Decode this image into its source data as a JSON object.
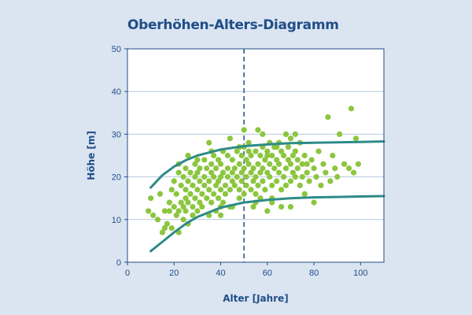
{
  "chart_data": {
    "type": "scatter",
    "title": "Oberhöhen-Alters-Diagramm",
    "xlabel": "Alter [Jahre]",
    "ylabel": "Höhe [m]",
    "xlim": [
      0,
      110
    ],
    "ylim": [
      0,
      50
    ],
    "xticks": [
      0,
      20,
      40,
      60,
      80,
      100
    ],
    "yticks": [
      0,
      10,
      20,
      30,
      40,
      50
    ],
    "grid": "horizontal",
    "reference_line_x": 50,
    "colors": {
      "points": "#8cc63f",
      "curves": "#2e8b88",
      "axis": "#1f4e87",
      "grid": "#b8c8de",
      "plot_bg": "#ffffff"
    },
    "curves": [
      {
        "x": [
          10,
          15,
          20,
          25,
          30,
          40,
          50,
          60,
          70,
          80,
          90,
          100,
          110
        ],
        "y": [
          17.5,
          20.4,
          22.4,
          23.9,
          25.0,
          26.4,
          27.2,
          27.6,
          27.9,
          28.0,
          28.1,
          28.2,
          28.3
        ]
      },
      {
        "x": [
          10,
          15,
          20,
          25,
          30,
          40,
          50,
          60,
          70,
          80,
          90,
          100,
          110
        ],
        "y": [
          2.6,
          4.8,
          7.0,
          9.0,
          10.6,
          12.8,
          14.0,
          14.6,
          15.0,
          15.2,
          15.3,
          15.4,
          15.5
        ]
      }
    ],
    "points": [
      [
        9,
        12
      ],
      [
        10,
        15
      ],
      [
        11,
        11
      ],
      [
        13,
        10
      ],
      [
        14,
        16
      ],
      [
        15,
        7
      ],
      [
        16,
        12
      ],
      [
        17,
        9
      ],
      [
        18,
        14
      ],
      [
        19,
        17
      ],
      [
        19,
        8
      ],
      [
        20,
        13
      ],
      [
        20,
        19
      ],
      [
        21,
        11
      ],
      [
        21,
        16
      ],
      [
        22,
        21
      ],
      [
        22,
        23
      ],
      [
        22,
        7
      ],
      [
        23,
        14
      ],
      [
        23,
        18
      ],
      [
        24,
        10
      ],
      [
        24,
        13
      ],
      [
        24,
        20
      ],
      [
        25,
        12
      ],
      [
        25,
        15
      ],
      [
        25,
        17
      ],
      [
        25,
        22
      ],
      [
        26,
        9
      ],
      [
        26,
        14
      ],
      [
        26,
        19
      ],
      [
        27,
        16
      ],
      [
        27,
        21
      ],
      [
        28,
        11
      ],
      [
        28,
        13
      ],
      [
        28,
        18
      ],
      [
        29,
        20
      ],
      [
        29,
        23
      ],
      [
        29,
        15
      ],
      [
        30,
        12
      ],
      [
        30,
        17
      ],
      [
        30,
        21
      ],
      [
        31,
        14
      ],
      [
        31,
        19
      ],
      [
        31,
        22
      ],
      [
        32,
        16
      ],
      [
        32,
        13
      ],
      [
        33,
        18
      ],
      [
        33,
        20
      ],
      [
        33,
        24
      ],
      [
        34,
        15
      ],
      [
        34,
        22
      ],
      [
        35,
        11
      ],
      [
        35,
        17
      ],
      [
        35,
        19
      ],
      [
        36,
        14
      ],
      [
        36,
        21
      ],
      [
        36,
        23
      ],
      [
        37,
        16
      ],
      [
        37,
        20
      ],
      [
        37,
        25
      ],
      [
        38,
        12
      ],
      [
        38,
        18
      ],
      [
        38,
        22
      ],
      [
        39,
        15
      ],
      [
        39,
        19
      ],
      [
        39,
        24
      ],
      [
        40,
        11
      ],
      [
        40,
        17
      ],
      [
        40,
        20
      ],
      [
        40,
        23
      ],
      [
        41,
        14
      ],
      [
        41,
        26
      ],
      [
        41,
        21
      ],
      [
        42,
        18
      ],
      [
        42,
        16
      ],
      [
        43,
        20
      ],
      [
        43,
        22
      ],
      [
        43,
        25
      ],
      [
        44,
        17
      ],
      [
        44,
        13
      ],
      [
        45,
        19
      ],
      [
        45,
        21
      ],
      [
        45,
        24
      ],
      [
        46,
        18
      ],
      [
        46,
        22
      ],
      [
        47,
        20
      ],
      [
        47,
        26
      ],
      [
        48,
        15
      ],
      [
        48,
        17
      ],
      [
        48,
        23
      ],
      [
        49,
        21
      ],
      [
        49,
        19
      ],
      [
        49,
        25
      ],
      [
        50,
        16
      ],
      [
        50,
        22
      ],
      [
        50,
        27
      ],
      [
        50,
        31
      ],
      [
        51,
        18
      ],
      [
        51,
        20
      ],
      [
        51,
        24
      ],
      [
        52,
        23
      ],
      [
        52,
        28
      ],
      [
        53,
        17
      ],
      [
        53,
        21
      ],
      [
        53,
        25
      ],
      [
        54,
        19
      ],
      [
        54,
        22
      ],
      [
        54,
        13
      ],
      [
        55,
        16
      ],
      [
        55,
        20
      ],
      [
        55,
        26
      ],
      [
        56,
        18
      ],
      [
        56,
        23
      ],
      [
        57,
        21
      ],
      [
        57,
        25
      ],
      [
        57,
        15
      ],
      [
        58,
        22
      ],
      [
        58,
        19
      ],
      [
        58,
        27
      ],
      [
        59,
        24
      ],
      [
        59,
        17
      ],
      [
        60,
        21
      ],
      [
        60,
        26
      ],
      [
        60,
        12
      ],
      [
        61,
        20
      ],
      [
        61,
        23
      ],
      [
        61,
        28
      ],
      [
        62,
        18
      ],
      [
        62,
        25
      ],
      [
        62,
        15
      ],
      [
        63,
        22
      ],
      [
        63,
        27
      ],
      [
        64,
        19
      ],
      [
        64,
        24
      ],
      [
        65,
        21
      ],
      [
        65,
        23
      ],
      [
        65,
        28
      ],
      [
        66,
        17
      ],
      [
        66,
        26
      ],
      [
        66,
        13
      ],
      [
        67,
        20
      ],
      [
        67,
        25
      ],
      [
        68,
        22
      ],
      [
        68,
        18
      ],
      [
        69,
        24
      ],
      [
        69,
        27
      ],
      [
        70,
        19
      ],
      [
        70,
        23
      ],
      [
        70,
        29
      ],
      [
        70,
        13
      ],
      [
        71,
        21
      ],
      [
        71,
        25
      ],
      [
        72,
        20
      ],
      [
        72,
        26
      ],
      [
        73,
        22
      ],
      [
        73,
        24
      ],
      [
        74,
        18
      ],
      [
        74,
        28
      ],
      [
        75,
        23
      ],
      [
        75,
        20
      ],
      [
        76,
        25
      ],
      [
        76,
        16
      ],
      [
        77,
        21
      ],
      [
        77,
        23
      ],
      [
        78,
        19
      ],
      [
        79,
        24
      ],
      [
        80,
        22
      ],
      [
        80,
        14
      ],
      [
        81,
        20
      ],
      [
        82,
        26
      ],
      [
        83,
        18
      ],
      [
        84,
        23
      ],
      [
        85,
        21
      ],
      [
        86,
        34
      ],
      [
        87,
        19
      ],
      [
        88,
        25
      ],
      [
        89,
        22
      ],
      [
        90,
        20
      ],
      [
        91,
        30
      ],
      [
        93,
        23
      ],
      [
        95,
        22
      ],
      [
        96,
        36
      ],
      [
        97,
        21
      ],
      [
        98,
        29
      ],
      [
        99,
        23
      ],
      [
        55,
        14
      ],
      [
        45,
        13
      ],
      [
        35,
        28
      ],
      [
        60,
        25
      ],
      [
        52,
        26
      ],
      [
        56,
        31
      ],
      [
        62,
        14
      ],
      [
        68,
        30
      ],
      [
        72,
        30
      ],
      [
        64,
        27
      ],
      [
        58,
        30
      ],
      [
        48,
        27
      ],
      [
        44,
        29
      ],
      [
        40,
        13
      ],
      [
        36,
        26
      ],
      [
        30,
        24
      ],
      [
        26,
        25
      ],
      [
        22,
        12
      ],
      [
        18,
        12
      ],
      [
        16,
        8
      ]
    ]
  }
}
